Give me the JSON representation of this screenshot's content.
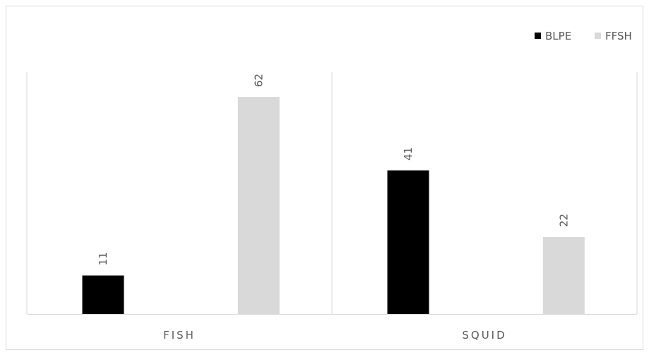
{
  "chart_data": {
    "type": "bar",
    "categories": [
      "FISH",
      "SQUID"
    ],
    "series": [
      {
        "name": "BLPE",
        "values": [
          11,
          41
        ],
        "color": "#000000"
      },
      {
        "name": "FFSH",
        "values": [
          62,
          22
        ],
        "color": "#d9d9d9"
      }
    ],
    "ylim": [
      0,
      70
    ],
    "grid": false,
    "category_separators": true,
    "legend_position": "top-right",
    "data_labels_rotation": "vertical"
  }
}
